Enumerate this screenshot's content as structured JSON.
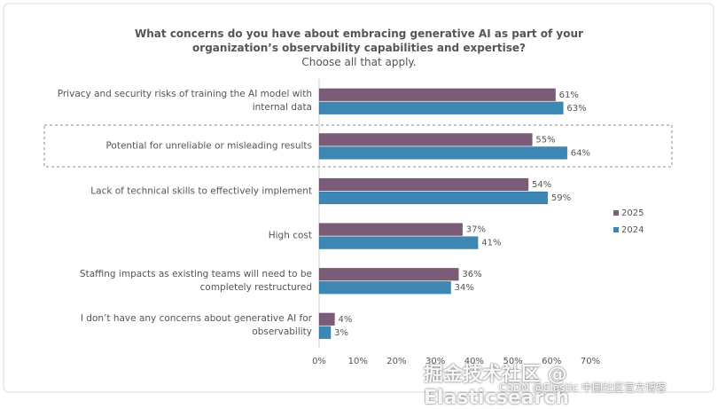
{
  "chart_data": {
    "type": "bar",
    "orientation": "horizontal",
    "title": "What concerns do you have about embracing generative AI as part of your organization’s observability capabilities and expertise?",
    "subtitle": "Choose all that apply.",
    "categories": [
      "Privacy and security risks of training the AI model with internal data",
      "Potential for unreliable or misleading results",
      "Lack of technical skills to effectively implement",
      "High cost",
      "Staffing impacts as existing teams will need to be completely restructured",
      "I don’t have any concerns about generative AI for observability"
    ],
    "series": [
      {
        "name": "2025",
        "color": "#7a5b78",
        "values": [
          61,
          55,
          54,
          37,
          36,
          4
        ],
        "value_labels": [
          "61%",
          "55%",
          "54%",
          "37%",
          "36%",
          "4%"
        ]
      },
      {
        "name": "2024",
        "color": "#3d87b4",
        "values": [
          63,
          64,
          59,
          41,
          34,
          3
        ],
        "value_labels": [
          "63%",
          "64%",
          "59%",
          "41%",
          "34%",
          "3%"
        ]
      }
    ],
    "xlim": [
      0,
      70
    ],
    "xticks": [
      {
        "value": 0,
        "label": "0%"
      },
      {
        "value": 10,
        "label": "10%"
      },
      {
        "value": 20,
        "label": "20%"
      },
      {
        "value": 30,
        "label": "30%"
      },
      {
        "value": 40,
        "label": "40%"
      },
      {
        "value": 50,
        "label": "50%"
      },
      {
        "value": 60,
        "label": "60%"
      },
      {
        "value": 70,
        "label": "70%"
      }
    ],
    "legend": "right",
    "watermark": [
      "掘金技术社区 @ Elasticsearch",
      "CSDN @Elastic 中国社区官方博客"
    ]
  }
}
